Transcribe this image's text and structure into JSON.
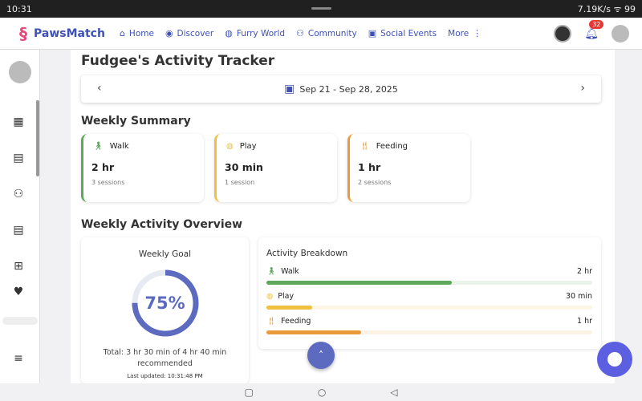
{
  "status": {
    "time": "10:31",
    "net": "7.19K/s",
    "battery": "99"
  },
  "header": {
    "brand": "PawsMatch",
    "nav": [
      "Home",
      "Discover",
      "Furry World",
      "Community",
      "Social Events",
      "More"
    ],
    "notifications": "32"
  },
  "title": "Fudgee's Activity Tracker",
  "date_range": "Sep 21 - Sep 28, 2025",
  "weekly_summary": {
    "heading": "Weekly Summary",
    "cards": [
      {
        "label": "Walk",
        "value": "2 hr",
        "sub": "3 sessions",
        "color": "#5ea85a"
      },
      {
        "label": "Play",
        "value": "30 min",
        "sub": "1 session",
        "color": "#f0c040"
      },
      {
        "label": "Feeding",
        "value": "1 hr",
        "sub": "2 sessions",
        "color": "#eb9a3a"
      }
    ]
  },
  "overview": {
    "heading": "Weekly Activity Overview",
    "goal": {
      "title": "Weekly Goal",
      "percent": "75%",
      "percent_value": 75,
      "total": "Total: 3 hr 30 min of 4 hr 40 min recommended",
      "updated": "Last updated: 10:31:48 PM"
    },
    "breakdown": {
      "title": "Activity Breakdown",
      "rows": [
        {
          "label": "Walk",
          "amount": "2 hr",
          "percent": 57,
          "color": "#5ea85a",
          "track": "#eaf4ea"
        },
        {
          "label": "Play",
          "amount": "30 min",
          "percent": 14,
          "color": "#f0c040",
          "track": "#fdf6e6"
        },
        {
          "label": "Feeding",
          "amount": "1 hr",
          "percent": 29,
          "color": "#eb9a3a",
          "track": "#fdf2e6"
        }
      ]
    }
  }
}
